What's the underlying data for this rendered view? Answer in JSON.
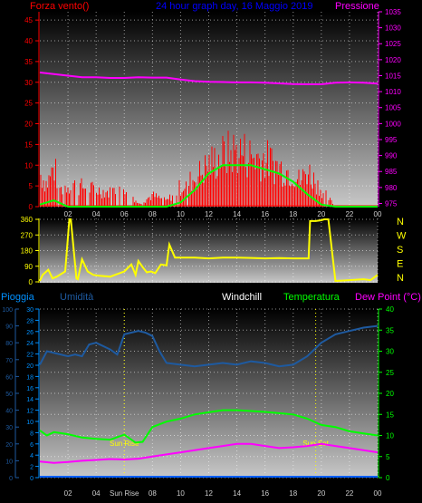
{
  "chart_data": [
    {
      "type": "line",
      "title": "24 hour graph day, 16 Maggio 2019",
      "ylabel_left": "Forza vento()",
      "ylabel_right": "Pressione",
      "x_ticks": [
        "02",
        "04",
        "06",
        "08",
        "10",
        "12",
        "14",
        "16",
        "18",
        "20",
        "22",
        "00"
      ],
      "y_left_ticks": [
        0,
        5,
        10,
        15,
        20,
        25,
        30,
        35,
        40,
        45
      ],
      "y_left_range": [
        0,
        47
      ],
      "y_right_ticks": [
        975,
        980,
        985,
        990,
        995,
        1000,
        1005,
        1010,
        1015,
        1020,
        1025,
        1030,
        1035
      ],
      "y_right_range": [
        974,
        1035
      ],
      "colors": {
        "wind": "#ff0000",
        "gust": "#00ff00",
        "pressure": "#ff00ff",
        "axis_left": "#ff0000",
        "axis_right": "#ff00ff",
        "title": "#0000ff"
      },
      "series": [
        {
          "name": "Pressione",
          "color": "#ff00ff",
          "x": [
            0,
            1,
            2,
            3,
            4,
            5,
            6,
            7,
            8,
            9,
            10,
            11,
            12,
            13,
            14,
            15,
            16,
            17,
            18,
            19,
            20,
            21,
            22,
            23,
            24
          ],
          "values": [
            1016,
            1015.5,
            1015,
            1014.5,
            1014.5,
            1014.3,
            1014.3,
            1014.5,
            1014.4,
            1014.4,
            1013.8,
            1013.3,
            1013.1,
            1013.0,
            1012.9,
            1012.9,
            1012.8,
            1012.6,
            1012.4,
            1012.3,
            1012.3,
            1012.8,
            1012.9,
            1012.8,
            1012.5
          ]
        },
        {
          "name": "gust_envelope",
          "color": "#00ff00",
          "x": [
            0,
            1,
            2,
            3,
            4,
            5,
            6,
            7,
            8,
            9,
            10,
            11,
            12,
            13,
            14,
            15,
            16,
            17,
            18,
            19,
            20,
            21,
            22,
            23,
            24
          ],
          "values": [
            0.5,
            1.5,
            0,
            0,
            0,
            0,
            0,
            0,
            0,
            0,
            1,
            4,
            8,
            10,
            10,
            10,
            9,
            8,
            6,
            3,
            0.5,
            0,
            0,
            0,
            0
          ]
        },
        {
          "name": "wind_peaks",
          "color": "#ff0000",
          "x": [
            0,
            0.5,
            1,
            1.5,
            2,
            3,
            4,
            5,
            6,
            7,
            8,
            9,
            10,
            11,
            12,
            13,
            14,
            15,
            16,
            17,
            18,
            18.5,
            19,
            20,
            21,
            22,
            23,
            24
          ],
          "values": [
            12,
            8,
            14,
            6,
            8,
            7,
            6,
            5,
            8,
            1,
            4,
            2,
            7,
            10,
            15,
            18,
            20,
            18,
            17,
            14,
            12,
            9,
            13,
            6,
            0,
            0,
            0,
            0
          ]
        }
      ]
    },
    {
      "type": "line",
      "y_ticks": [
        0,
        90,
        180,
        270,
        360
      ],
      "y_range": [
        0,
        360
      ],
      "x_ticks": [
        "02",
        "04",
        "06",
        "08",
        "10",
        "12",
        "14",
        "16",
        "18",
        "20",
        "22",
        "00"
      ],
      "right_labels": [
        "N",
        "W",
        "S",
        "E",
        "N"
      ],
      "colors": {
        "direction": "#ffff00",
        "axis": "#ffff00",
        "compass": "#ffff00"
      },
      "series": [
        {
          "name": "direction",
          "color": "#ffff00",
          "x": [
            0,
            0.2,
            0.6,
            0.9,
            1.2,
            1.8,
            2.1,
            2.2,
            2.6,
            2.7,
            3.0,
            3.4,
            3.8,
            4.2,
            5.0,
            6.0,
            6.5,
            6.8,
            7.0,
            7.3,
            7.6,
            7.9,
            8.2,
            8.6,
            9.0,
            9.2,
            9.6,
            10,
            11,
            12,
            13,
            14,
            15,
            16,
            17,
            18,
            19.1,
            19.2,
            19.6,
            20.0,
            20.2,
            20.5,
            21,
            22,
            23,
            23.5,
            24
          ],
          "values": [
            5,
            40,
            70,
            20,
            30,
            60,
            360,
            360,
            20,
            15,
            130,
            60,
            40,
            35,
            30,
            60,
            100,
            40,
            120,
            85,
            55,
            60,
            50,
            100,
            95,
            215,
            140,
            140,
            140,
            135,
            140,
            140,
            138,
            135,
            137,
            135,
            135,
            350,
            350,
            355,
            360,
            360,
            5,
            10,
            15,
            10,
            40
          ]
        }
      ]
    },
    {
      "type": "line",
      "legend": [
        "Pioggia",
        "Umidità",
        "Windchill",
        "Temperatura",
        "Dew Point (°C)"
      ],
      "x_ticks": [
        "02",
        "04",
        "Sun Rise",
        "08",
        "10",
        "12",
        "14",
        "16",
        "18",
        "20",
        "22",
        "00"
      ],
      "annotations": [
        "Sun Rise",
        "Sun Set"
      ],
      "y_far_left_ticks": [
        0,
        10,
        20,
        30,
        40,
        50,
        60,
        70,
        80,
        90,
        100
      ],
      "y_left_ticks": [
        0,
        2,
        4,
        6,
        8,
        10,
        12,
        14,
        16,
        18,
        20,
        22,
        24,
        26,
        28,
        30
      ],
      "y_right_ticks": [
        0,
        5,
        10,
        15,
        20,
        25,
        30,
        35,
        40
      ],
      "y_right_range": [
        0,
        40
      ],
      "colors": {
        "rain": "#0060ff",
        "humidity": "#1e5aa0",
        "windchill": "#ffffff",
        "temperature": "#00ff00",
        "dewpoint": "#ff00ff",
        "axis_far_left": "#1e5aa0",
        "axis_left": "#0090ff",
        "axis_right": "#00ff00",
        "sun": "#ffff00"
      },
      "series": [
        {
          "name": "Temperatura",
          "color": "#00ff00",
          "x": [
            0,
            0.5,
            1,
            2,
            3,
            4,
            5,
            6,
            6.8,
            7.3,
            8,
            9,
            10,
            11,
            12,
            13,
            14,
            15,
            16,
            17,
            18,
            19,
            20,
            21,
            22,
            23,
            24
          ],
          "values": [
            11.2,
            10,
            10.8,
            10.3,
            9.5,
            9.2,
            9,
            10.2,
            8.3,
            8.5,
            12,
            13.3,
            14,
            15,
            15.5,
            16,
            16,
            15.8,
            15.6,
            15.3,
            15,
            14,
            12.5,
            12,
            11,
            10.5,
            10
          ]
        },
        {
          "name": "Dew Point (°C)",
          "color": "#ff00ff",
          "x": [
            0,
            1,
            2,
            3,
            4,
            5,
            6,
            7,
            8,
            9,
            10,
            11,
            12,
            13,
            14,
            15,
            16,
            17,
            18,
            19,
            20,
            21,
            22,
            23,
            24
          ],
          "values": [
            3.8,
            3.5,
            3.7,
            4,
            4.2,
            4.4,
            4.3,
            4.5,
            5,
            5.5,
            6,
            6.5,
            7,
            7.5,
            8,
            8,
            7.5,
            7,
            7.2,
            7.5,
            8,
            7.5,
            7,
            6.5,
            6
          ]
        },
        {
          "name": "Umidità",
          "color": "#1e5aa0",
          "x": [
            0,
            0.5,
            1,
            2,
            2.5,
            3,
            3.5,
            4,
            4.5,
            5,
            5.5,
            6,
            6.5,
            7,
            7.5,
            8,
            8.5,
            9,
            10,
            11,
            12,
            13,
            14,
            15,
            16,
            17,
            18,
            19,
            20,
            21,
            22,
            23,
            24
          ],
          "values": [
            67,
            75,
            74,
            72,
            73,
            72,
            79,
            80,
            78,
            76,
            73,
            85,
            86,
            87,
            86,
            84,
            75,
            68,
            67,
            66,
            67,
            68,
            67,
            69,
            68,
            66,
            67,
            72,
            80,
            85,
            87,
            89,
            90
          ]
        },
        {
          "name": "Pioggia",
          "color": "#0060ff",
          "x": [
            0,
            24
          ],
          "values": [
            0,
            0
          ]
        }
      ]
    }
  ]
}
